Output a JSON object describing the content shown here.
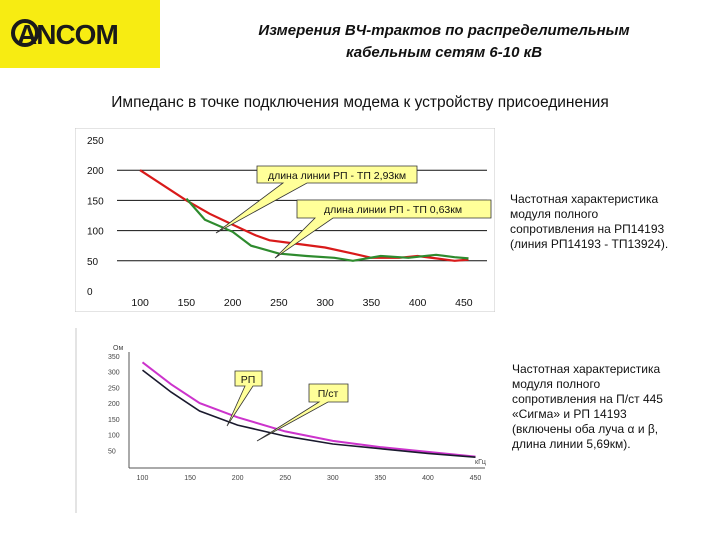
{
  "header": {
    "logo_text": "ANCOM",
    "title_line1": "Измерения ВЧ-трактов по распределительным",
    "title_line2": "кабельным сетям 6-10 кВ",
    "subtitle": "Импеданс в точке подключения модема к устройству присоединения"
  },
  "colors": {
    "logo_bg": "#f7ec12",
    "red_series": "#d91a1a",
    "green_series": "#2e8b2e",
    "magenta_series": "#cc33cc",
    "dark_series": "#1a1a2e",
    "callout_fill": "#ffff99"
  },
  "chart_data": [
    {
      "type": "line",
      "yticks": [
        "250",
        "200",
        "150",
        "100",
        "50",
        "0"
      ],
      "xticks": [
        "100",
        "150",
        "200",
        "250",
        "300",
        "350",
        "400",
        "450"
      ],
      "ylim": [
        0,
        250
      ],
      "xlim": [
        75,
        475
      ],
      "grid": true,
      "series": [
        {
          "name": "длина линии РП - ТП 2,93км",
          "color": "#d91a1a",
          "x": [
            100,
            150,
            175,
            200,
            225,
            240,
            270,
            300,
            330,
            350,
            380,
            400,
            420,
            440,
            455
          ],
          "y": [
            200,
            150,
            128,
            110,
            92,
            84,
            78,
            72,
            62,
            55,
            55,
            58,
            54,
            50,
            52
          ]
        },
        {
          "name": "длина линии РП - ТП 0,63км",
          "color": "#2e8b2e",
          "x": [
            150,
            170,
            200,
            220,
            250,
            280,
            310,
            330,
            360,
            390,
            420,
            440,
            455
          ],
          "y": [
            153,
            118,
            98,
            75,
            62,
            58,
            55,
            50,
            58,
            55,
            60,
            56,
            54
          ]
        }
      ],
      "callouts": [
        "длина линии РП - ТП 2,93км",
        "длина линии РП - ТП 0,63км"
      ],
      "caption": [
        "Частотная характеристика",
        "модуля полного",
        "сопротивления на РП14193",
        "(линия РП14193 - ТП13924)."
      ]
    },
    {
      "type": "line",
      "yunit": "Ом",
      "xunit": "кГц",
      "yticks": [
        "350",
        "300",
        "250",
        "200",
        "150",
        "100",
        "50"
      ],
      "xticks": [
        "100",
        "150",
        "200",
        "250",
        "300",
        "350",
        "400",
        "450"
      ],
      "ylim": [
        0,
        350
      ],
      "xlim": [
        90,
        460
      ],
      "series": [
        {
          "name": "П/ст",
          "color": "#cc33cc",
          "x": [
            100,
            130,
            160,
            200,
            250,
            300,
            350,
            400,
            450
          ],
          "y": [
            330,
            260,
            200,
            155,
            110,
            80,
            60,
            45,
            30
          ]
        },
        {
          "name": "РП",
          "color": "#1a1a2e",
          "x": [
            100,
            130,
            160,
            200,
            250,
            300,
            350,
            400,
            450
          ],
          "y": [
            305,
            235,
            175,
            130,
            95,
            70,
            55,
            40,
            28
          ]
        }
      ],
      "callouts": [
        "РП",
        "П/ст"
      ],
      "caption": [
        "Частотная характеристика",
        "модуля полного",
        "сопротивления на П/ст 445",
        "«Сигма» и РП 14193",
        "(включены оба луча α и β,",
        "длина линии 5,69км)."
      ]
    }
  ]
}
